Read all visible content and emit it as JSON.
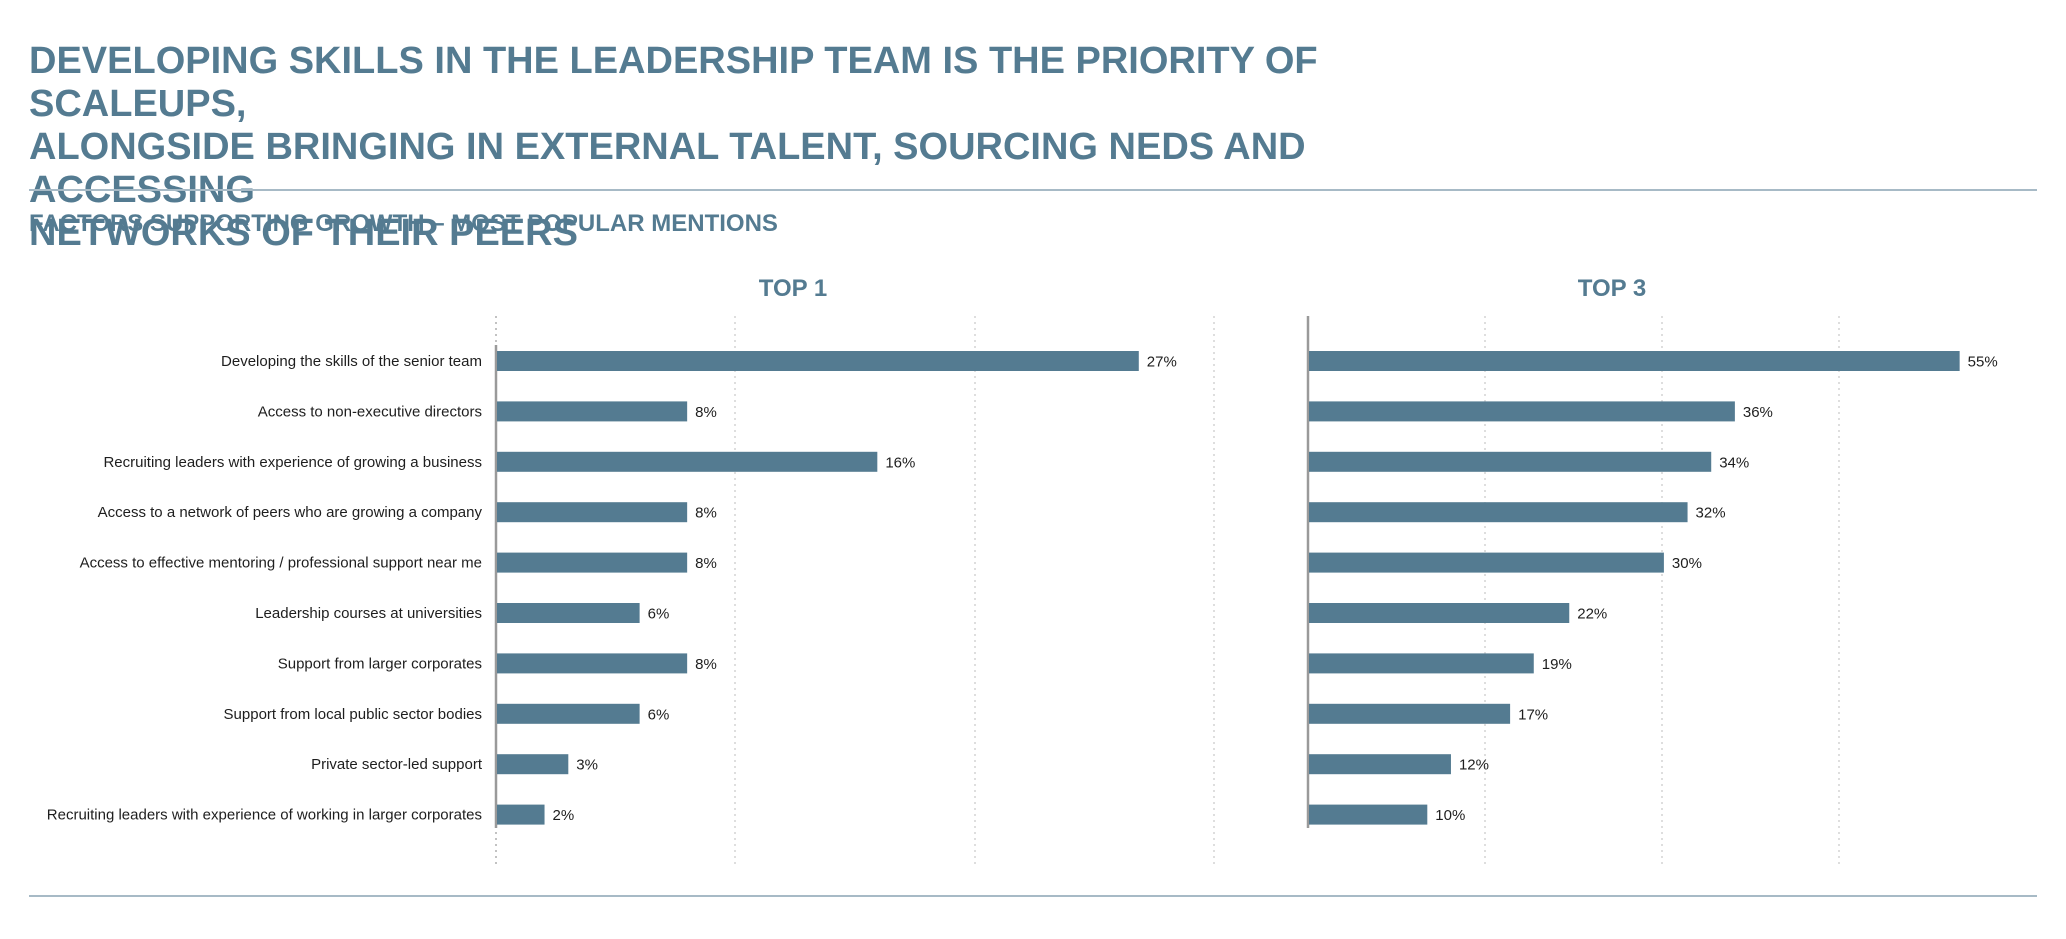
{
  "header": {
    "title_lines": [
      "DEVELOPING SKILLS IN THE LEADERSHIP TEAM IS THE PRIORITY OF SCALEUPS,",
      "ALONGSIDE BRINGING IN EXTERNAL TALENT, SOURCING NEDS AND ACCESSING",
      "NETWORKS OF THEIR PEERS"
    ],
    "subtitle": "FACTORS SUPPORTING GROWTH – MOST POPULAR MENTIONS"
  },
  "colors": {
    "bar": "#547b91",
    "heading": "#547b91",
    "rule": "#a7bac6",
    "grid": "#c9c9c9",
    "axis": "#9a9a9a"
  },
  "chart_data": [
    {
      "type": "bar",
      "orientation": "horizontal",
      "title": "TOP 1",
      "categories": [
        "Developing the skills of the senior team",
        "Access to non-executive directors",
        "Recruiting leaders with experience of growing a business",
        "Access to a network of peers who are growing a company",
        "Access to effective mentoring / professional support near me",
        "Leadership courses at universities",
        "Support from larger corporates",
        "Support from local public sector bodies",
        "Private sector-led support",
        "Recruiting leaders with experience of working in larger corporates"
      ],
      "values": [
        27,
        8,
        16,
        8,
        8,
        6,
        8,
        6,
        3,
        2
      ],
      "value_labels": [
        "27%",
        "8%",
        "16%",
        "8%",
        "8%",
        "6%",
        "8%",
        "6%",
        "3%",
        "2%"
      ],
      "unit": "%",
      "xlim": [
        0,
        30
      ],
      "grid": true
    },
    {
      "type": "bar",
      "orientation": "horizontal",
      "title": "TOP 3",
      "categories": [
        "Developing the skills of the senior team",
        "Access to non-executive directors",
        "Recruiting leaders with experience of growing a business",
        "Access to a network of peers who are growing a company",
        "Access to effective mentoring / professional support near me",
        "Leadership courses at universities",
        "Support from larger corporates",
        "Support from local public sector bodies",
        "Private sector-led support",
        "Recruiting leaders with experience of working in larger corporates"
      ],
      "values": [
        55,
        36,
        34,
        32,
        30,
        22,
        19,
        17,
        12,
        10
      ],
      "value_labels": [
        "55%",
        "36%",
        "34%",
        "32%",
        "30%",
        "22%",
        "19%",
        "17%",
        "12%",
        "10%"
      ],
      "unit": "%",
      "xlim": [
        0,
        60
      ],
      "grid": true
    }
  ]
}
